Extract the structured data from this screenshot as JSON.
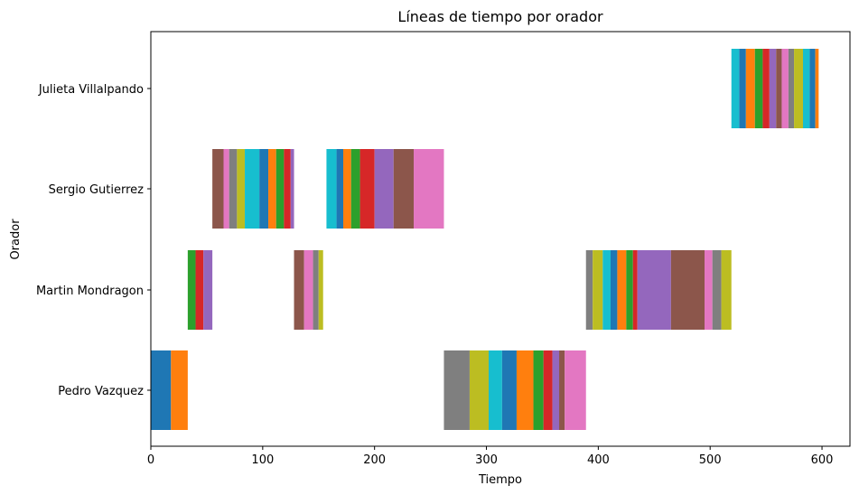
{
  "chart_data": {
    "type": "bar",
    "orientation": "horizontal-timeline",
    "title": "Líneas de tiempo por orador",
    "xlabel": "Tiempo",
    "ylabel": "Orador",
    "xlim": [
      0,
      625
    ],
    "xticks": [
      0,
      100,
      200,
      300,
      400,
      500,
      600
    ],
    "categories": [
      "Pedro Vazquez",
      "Martin Mondragon",
      "Sergio Gutierrez",
      "Julieta Villalpando"
    ],
    "grid": false,
    "palette": [
      "#1f77b4",
      "#ff7f0e",
      "#2ca02c",
      "#d62728",
      "#9467bd",
      "#8c564b",
      "#e377c2",
      "#7f7f7f",
      "#bcbd22",
      "#17becf"
    ],
    "segments": [
      {
        "speaker": "Pedro Vazquez",
        "start": 0,
        "end": 18,
        "color": "#1f77b4"
      },
      {
        "speaker": "Pedro Vazquez",
        "start": 18,
        "end": 33,
        "color": "#ff7f0e"
      },
      {
        "speaker": "Martin Mondragon",
        "start": 33,
        "end": 40,
        "color": "#2ca02c"
      },
      {
        "speaker": "Martin Mondragon",
        "start": 40,
        "end": 47,
        "color": "#d62728"
      },
      {
        "speaker": "Martin Mondragon",
        "start": 47,
        "end": 55,
        "color": "#9467bd"
      },
      {
        "speaker": "Sergio Gutierrez",
        "start": 55,
        "end": 65,
        "color": "#8c564b"
      },
      {
        "speaker": "Sergio Gutierrez",
        "start": 65,
        "end": 70,
        "color": "#e377c2"
      },
      {
        "speaker": "Sergio Gutierrez",
        "start": 70,
        "end": 77,
        "color": "#7f7f7f"
      },
      {
        "speaker": "Sergio Gutierrez",
        "start": 77,
        "end": 84,
        "color": "#bcbd22"
      },
      {
        "speaker": "Sergio Gutierrez",
        "start": 84,
        "end": 97,
        "color": "#17becf"
      },
      {
        "speaker": "Sergio Gutierrez",
        "start": 97,
        "end": 105,
        "color": "#1f77b4"
      },
      {
        "speaker": "Sergio Gutierrez",
        "start": 105,
        "end": 112,
        "color": "#ff7f0e"
      },
      {
        "speaker": "Sergio Gutierrez",
        "start": 112,
        "end": 119,
        "color": "#2ca02c"
      },
      {
        "speaker": "Sergio Gutierrez",
        "start": 119,
        "end": 125,
        "color": "#d62728"
      },
      {
        "speaker": "Sergio Gutierrez",
        "start": 125,
        "end": 128,
        "color": "#9467bd"
      },
      {
        "speaker": "Martin Mondragon",
        "start": 128,
        "end": 137,
        "color": "#8c564b"
      },
      {
        "speaker": "Martin Mondragon",
        "start": 137,
        "end": 145,
        "color": "#e377c2"
      },
      {
        "speaker": "Martin Mondragon",
        "start": 145,
        "end": 150,
        "color": "#7f7f7f"
      },
      {
        "speaker": "Martin Mondragon",
        "start": 150,
        "end": 154,
        "color": "#bcbd22"
      },
      {
        "speaker": "Sergio Gutierrez",
        "start": 157,
        "end": 166,
        "color": "#17becf"
      },
      {
        "speaker": "Sergio Gutierrez",
        "start": 166,
        "end": 172,
        "color": "#1f77b4"
      },
      {
        "speaker": "Sergio Gutierrez",
        "start": 172,
        "end": 179,
        "color": "#ff7f0e"
      },
      {
        "speaker": "Sergio Gutierrez",
        "start": 179,
        "end": 187,
        "color": "#2ca02c"
      },
      {
        "speaker": "Sergio Gutierrez",
        "start": 187,
        "end": 200,
        "color": "#d62728"
      },
      {
        "speaker": "Sergio Gutierrez",
        "start": 200,
        "end": 217,
        "color": "#9467bd"
      },
      {
        "speaker": "Sergio Gutierrez",
        "start": 217,
        "end": 235,
        "color": "#8c564b"
      },
      {
        "speaker": "Sergio Gutierrez",
        "start": 235,
        "end": 262,
        "color": "#e377c2"
      },
      {
        "speaker": "Pedro Vazquez",
        "start": 262,
        "end": 285,
        "color": "#7f7f7f"
      },
      {
        "speaker": "Pedro Vazquez",
        "start": 285,
        "end": 302,
        "color": "#bcbd22"
      },
      {
        "speaker": "Pedro Vazquez",
        "start": 302,
        "end": 314,
        "color": "#17becf"
      },
      {
        "speaker": "Pedro Vazquez",
        "start": 314,
        "end": 327,
        "color": "#1f77b4"
      },
      {
        "speaker": "Pedro Vazquez",
        "start": 327,
        "end": 342,
        "color": "#ff7f0e"
      },
      {
        "speaker": "Pedro Vazquez",
        "start": 342,
        "end": 351,
        "color": "#2ca02c"
      },
      {
        "speaker": "Pedro Vazquez",
        "start": 351,
        "end": 359,
        "color": "#d62728"
      },
      {
        "speaker": "Pedro Vazquez",
        "start": 359,
        "end": 365,
        "color": "#9467bd"
      },
      {
        "speaker": "Pedro Vazquez",
        "start": 365,
        "end": 370,
        "color": "#8c564b"
      },
      {
        "speaker": "Pedro Vazquez",
        "start": 370,
        "end": 389,
        "color": "#e377c2"
      },
      {
        "speaker": "Martin Mondragon",
        "start": 389,
        "end": 395,
        "color": "#7f7f7f"
      },
      {
        "speaker": "Martin Mondragon",
        "start": 395,
        "end": 404,
        "color": "#bcbd22"
      },
      {
        "speaker": "Martin Mondragon",
        "start": 404,
        "end": 411,
        "color": "#17becf"
      },
      {
        "speaker": "Martin Mondragon",
        "start": 411,
        "end": 417,
        "color": "#1f77b4"
      },
      {
        "speaker": "Martin Mondragon",
        "start": 417,
        "end": 425,
        "color": "#ff7f0e"
      },
      {
        "speaker": "Martin Mondragon",
        "start": 425,
        "end": 431,
        "color": "#2ca02c"
      },
      {
        "speaker": "Martin Mondragon",
        "start": 431,
        "end": 435,
        "color": "#d62728"
      },
      {
        "speaker": "Martin Mondragon",
        "start": 435,
        "end": 465,
        "color": "#9467bd"
      },
      {
        "speaker": "Martin Mondragon",
        "start": 465,
        "end": 495,
        "color": "#8c564b"
      },
      {
        "speaker": "Martin Mondragon",
        "start": 495,
        "end": 502,
        "color": "#e377c2"
      },
      {
        "speaker": "Martin Mondragon",
        "start": 502,
        "end": 510,
        "color": "#7f7f7f"
      },
      {
        "speaker": "Martin Mondragon",
        "start": 510,
        "end": 519,
        "color": "#bcbd22"
      },
      {
        "speaker": "Julieta Villalpando",
        "start": 519,
        "end": 526,
        "color": "#17becf"
      },
      {
        "speaker": "Julieta Villalpando",
        "start": 526,
        "end": 532,
        "color": "#1f77b4"
      },
      {
        "speaker": "Julieta Villalpando",
        "start": 532,
        "end": 540,
        "color": "#ff7f0e"
      },
      {
        "speaker": "Julieta Villalpando",
        "start": 540,
        "end": 547,
        "color": "#2ca02c"
      },
      {
        "speaker": "Julieta Villalpando",
        "start": 547,
        "end": 553,
        "color": "#d62728"
      },
      {
        "speaker": "Julieta Villalpando",
        "start": 553,
        "end": 559,
        "color": "#9467bd"
      },
      {
        "speaker": "Julieta Villalpando",
        "start": 559,
        "end": 564,
        "color": "#8c564b"
      },
      {
        "speaker": "Julieta Villalpando",
        "start": 564,
        "end": 570,
        "color": "#e377c2"
      },
      {
        "speaker": "Julieta Villalpando",
        "start": 570,
        "end": 575,
        "color": "#7f7f7f"
      },
      {
        "speaker": "Julieta Villalpando",
        "start": 575,
        "end": 583,
        "color": "#bcbd22"
      },
      {
        "speaker": "Julieta Villalpando",
        "start": 583,
        "end": 589,
        "color": "#17becf"
      },
      {
        "speaker": "Julieta Villalpando",
        "start": 589,
        "end": 594,
        "color": "#1f77b4"
      },
      {
        "speaker": "Julieta Villalpando",
        "start": 594,
        "end": 597,
        "color": "#ff7f0e"
      }
    ]
  }
}
